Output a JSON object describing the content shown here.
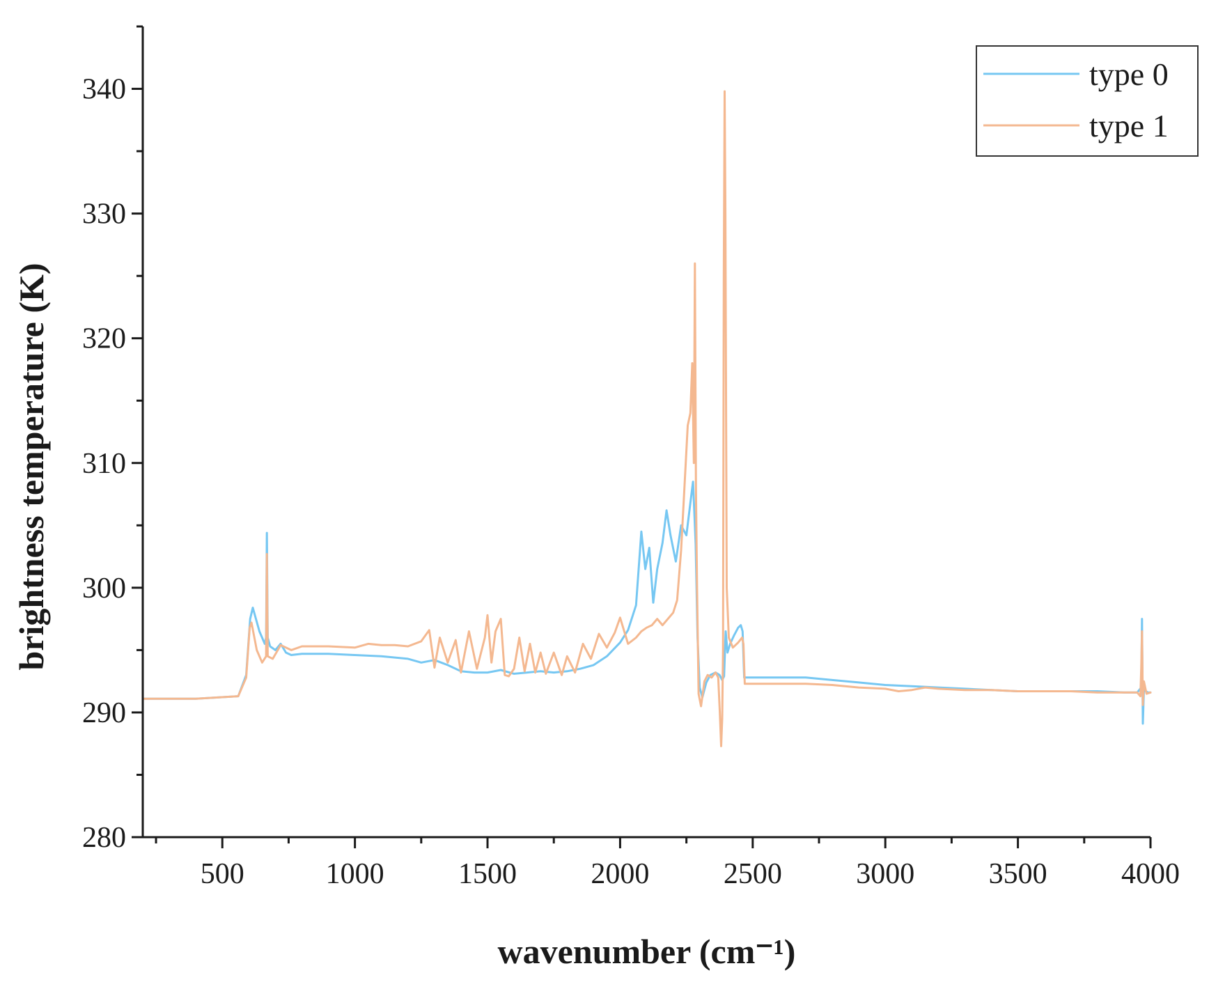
{
  "chart_data": {
    "type": "line",
    "title": "",
    "xlabel": "wavenumber (cm⁻¹)",
    "ylabel": "brightness temperature (K)",
    "xlim": [
      200,
      4000
    ],
    "ylim": [
      280,
      345
    ],
    "xticks": [
      500,
      1000,
      1500,
      2000,
      2500,
      3000,
      3500,
      4000
    ],
    "yticks": [
      280,
      290,
      300,
      310,
      320,
      330,
      340
    ],
    "xtick_labels": [
      "500",
      "1000",
      "1500",
      "2000",
      "2500",
      "3000",
      "3500",
      "4000"
    ],
    "ytick_labels": [
      "280",
      "290",
      "300",
      "310",
      "320",
      "330",
      "340"
    ],
    "grid": false,
    "legend_position": "top-right",
    "series": [
      {
        "name": "type 0",
        "color": "#76c7f2",
        "x": [
          200,
          400,
          560,
          590,
          605,
          615,
          640,
          660,
          665,
          668,
          671,
          680,
          700,
          720,
          740,
          760,
          800,
          900,
          1000,
          1100,
          1200,
          1250,
          1300,
          1350,
          1400,
          1450,
          1500,
          1550,
          1600,
          1650,
          1700,
          1750,
          1800,
          1850,
          1900,
          1950,
          2000,
          2030,
          2060,
          2080,
          2095,
          2110,
          2125,
          2140,
          2160,
          2175,
          2190,
          2210,
          2230,
          2250,
          2265,
          2275,
          2285,
          2292,
          2300,
          2310,
          2325,
          2340,
          2360,
          2375,
          2385,
          2392,
          2398,
          2405,
          2415,
          2430,
          2445,
          2455,
          2462,
          2468,
          2500,
          2600,
          2700,
          2800,
          2900,
          3000,
          3100,
          3200,
          3300,
          3400,
          3500,
          3600,
          3700,
          3800,
          3900,
          3950,
          3965,
          3968,
          3971,
          3975,
          3990,
          4000
        ],
        "y": [
          291.1,
          291.1,
          291.3,
          293.0,
          297.5,
          298.4,
          296.5,
          295.5,
          296.0,
          304.4,
          296.0,
          295.3,
          295.0,
          295.5,
          294.8,
          294.6,
          294.7,
          294.7,
          294.6,
          294.5,
          294.3,
          294.0,
          294.2,
          293.8,
          293.3,
          293.2,
          293.2,
          293.4,
          293.1,
          293.2,
          293.3,
          293.2,
          293.3,
          293.5,
          293.8,
          294.5,
          295.6,
          296.6,
          298.6,
          304.5,
          301.5,
          303.2,
          298.8,
          301.5,
          303.6,
          306.2,
          304.2,
          302.1,
          305.0,
          304.2,
          306.8,
          308.5,
          303.5,
          296.0,
          292.0,
          291.2,
          292.4,
          293.0,
          293.2,
          293.0,
          292.6,
          292.9,
          296.5,
          294.8,
          295.5,
          296.2,
          296.8,
          297.0,
          296.5,
          292.8,
          292.8,
          292.8,
          292.8,
          292.6,
          292.4,
          292.2,
          292.1,
          292.0,
          291.9,
          291.8,
          291.7,
          291.7,
          291.7,
          291.7,
          291.6,
          291.6,
          292.0,
          297.5,
          289.1,
          291.8,
          291.6,
          291.6
        ]
      },
      {
        "name": "type 1",
        "color": "#f4b890",
        "x": [
          200,
          400,
          560,
          590,
          603,
          610,
          630,
          650,
          665,
          668,
          671,
          690,
          720,
          760,
          800,
          900,
          1000,
          1050,
          1100,
          1150,
          1200,
          1250,
          1280,
          1300,
          1320,
          1350,
          1380,
          1400,
          1430,
          1460,
          1490,
          1500,
          1515,
          1530,
          1550,
          1565,
          1580,
          1600,
          1620,
          1640,
          1660,
          1680,
          1700,
          1720,
          1750,
          1780,
          1800,
          1830,
          1860,
          1890,
          1920,
          1950,
          1980,
          2000,
          2030,
          2060,
          2080,
          2100,
          2120,
          2140,
          2160,
          2180,
          2200,
          2215,
          2230,
          2245,
          2255,
          2265,
          2272,
          2278,
          2282,
          2286,
          2290,
          2296,
          2305,
          2318,
          2330,
          2345,
          2360,
          2370,
          2376,
          2381,
          2385,
          2388,
          2391,
          2394,
          2397,
          2402,
          2410,
          2425,
          2445,
          2460,
          2465,
          2470,
          2500,
          2600,
          2700,
          2800,
          2900,
          3000,
          3050,
          3100,
          3150,
          3200,
          3300,
          3400,
          3500,
          3600,
          3700,
          3800,
          3900,
          3950,
          3962,
          3965,
          3968,
          3971,
          3975,
          3985,
          4000
        ],
        "y": [
          291.1,
          291.1,
          291.3,
          292.8,
          296.8,
          297.2,
          295.0,
          294.0,
          294.5,
          302.7,
          294.5,
          294.3,
          295.4,
          295.0,
          295.3,
          295.3,
          295.2,
          295.5,
          295.4,
          295.4,
          295.3,
          295.7,
          296.6,
          293.6,
          296.0,
          294.0,
          295.8,
          293.2,
          296.5,
          293.5,
          296.0,
          297.8,
          294.0,
          296.5,
          297.5,
          293.0,
          292.9,
          293.5,
          296.0,
          293.3,
          295.5,
          293.2,
          294.8,
          293.1,
          294.8,
          293.0,
          294.5,
          293.2,
          295.5,
          294.3,
          296.3,
          295.2,
          296.4,
          297.6,
          295.5,
          296.0,
          296.5,
          296.8,
          297.0,
          297.5,
          297.0,
          297.5,
          298.0,
          299.0,
          303.0,
          309.0,
          313.0,
          314.0,
          318.0,
          310.0,
          326.0,
          308.0,
          300.0,
          291.5,
          290.5,
          292.5,
          293.0,
          292.8,
          293.2,
          292.8,
          290.0,
          287.3,
          289.5,
          295.0,
          325.0,
          339.8,
          330.0,
          300.0,
          296.0,
          295.2,
          295.6,
          296.0,
          295.5,
          292.3,
          292.3,
          292.3,
          292.3,
          292.2,
          292.0,
          291.9,
          291.7,
          291.8,
          292.0,
          291.9,
          291.8,
          291.8,
          291.7,
          291.7,
          291.7,
          291.6,
          291.6,
          291.6,
          291.3,
          293.5,
          296.5,
          290.6,
          292.5,
          291.5,
          291.6
        ]
      }
    ]
  }
}
